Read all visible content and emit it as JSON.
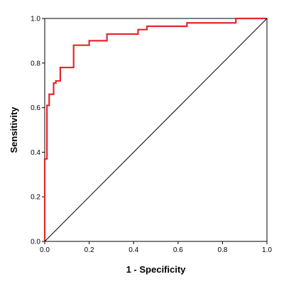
{
  "chart_data": {
    "type": "line",
    "title": "",
    "xlabel": "1 - Specificity",
    "ylabel": "Sensitivity",
    "xlim": [
      0,
      1
    ],
    "ylim": [
      0,
      1
    ],
    "x_ticks": [
      "0.0",
      "0.2",
      "0.4",
      "0.6",
      "0.8",
      "1.0"
    ],
    "y_ticks": [
      "0.0",
      "0.2",
      "0.4",
      "0.6",
      "0.8",
      "1.0"
    ],
    "grid": false,
    "legend": "none",
    "series": [
      {
        "color": "#e8262a",
        "x": [
          0.0,
          0.0,
          0.01,
          0.01,
          0.02,
          0.02,
          0.04,
          0.04,
          0.05,
          0.05,
          0.07,
          0.07,
          0.08,
          0.08,
          0.13,
          0.13,
          0.2,
          0.2,
          0.28,
          0.28,
          0.42,
          0.42,
          0.46,
          0.46,
          0.64,
          0.64,
          0.86,
          0.86,
          1.0
        ],
        "y": [
          0.0,
          0.37,
          0.37,
          0.61,
          0.61,
          0.66,
          0.66,
          0.71,
          0.71,
          0.72,
          0.72,
          0.78,
          0.78,
          0.78,
          0.78,
          0.88,
          0.88,
          0.9,
          0.9,
          0.93,
          0.93,
          0.95,
          0.95,
          0.965,
          0.965,
          0.98,
          0.98,
          1.0,
          1.0
        ]
      },
      {
        "color": "#000000",
        "x": [
          0,
          1
        ],
        "y": [
          0,
          1
        ]
      }
    ]
  }
}
